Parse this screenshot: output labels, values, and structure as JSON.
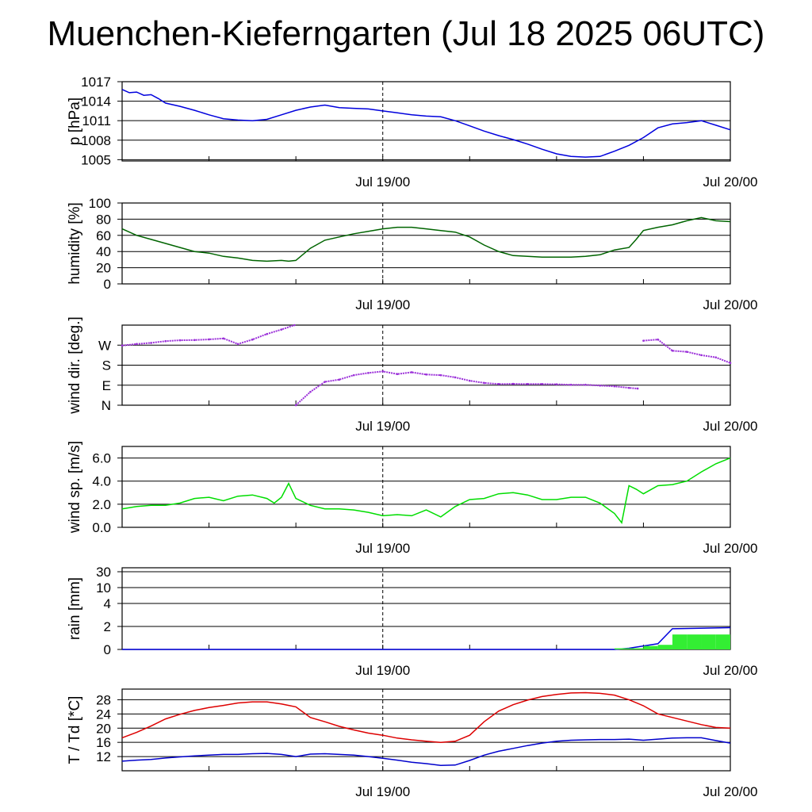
{
  "title": "Muenchen-Kieferngarten (Jul 18 2025 06UTC)",
  "colors": {
    "pressure": "#0000dd",
    "humidity": "#006400",
    "wind_dir": "#9b30d9",
    "wind_speed": "#00dd00",
    "rain_total": "#0000dd",
    "rain_hourly": "#33ee33",
    "temperature": "#dd0000",
    "dewpoint": "#0000cc"
  },
  "chart_data": [
    {
      "type": "line",
      "ylabel": "p [hPa]",
      "yticks": [
        1005,
        1008,
        1011,
        1014,
        1017
      ],
      "ytick_labels": [
        "1005",
        "1008",
        "1011",
        "1014",
        "1017"
      ],
      "ylim": [
        1004.8,
        1017
      ],
      "xticks": [
        18,
        42
      ],
      "xtick_labels": [
        "Jul 19/00",
        "Jul 20/00"
      ],
      "series": [
        {
          "color": "pressure",
          "x": [
            0,
            0.5,
            1,
            1.5,
            2,
            2.5,
            3,
            4,
            5,
            6,
            7,
            8,
            9,
            10,
            11,
            12,
            13,
            14,
            15,
            16,
            17,
            18,
            19,
            20,
            21,
            22,
            23,
            24,
            25,
            26,
            27,
            28,
            29,
            30,
            31,
            32,
            33,
            34,
            35,
            36,
            37,
            38,
            39,
            40,
            41,
            42
          ],
          "y": [
            1015.8,
            1015.3,
            1015.4,
            1014.9,
            1015.0,
            1014.4,
            1013.7,
            1013.2,
            1012.6,
            1011.9,
            1011.3,
            1011.1,
            1011.0,
            1011.2,
            1011.9,
            1012.6,
            1013.1,
            1013.4,
            1013.0,
            1012.9,
            1012.8,
            1012.5,
            1012.2,
            1011.9,
            1011.7,
            1011.6,
            1011.0,
            1010.2,
            1009.4,
            1008.7,
            1008.1,
            1007.4,
            1006.6,
            1005.9,
            1005.5,
            1005.4,
            1005.5,
            1006.3,
            1007.2,
            1008.4,
            1009.9,
            1010.5,
            1010.7,
            1011.0,
            1010.3,
            1009.6
          ]
        }
      ]
    },
    {
      "type": "line",
      "ylabel": "humidity [%]",
      "yticks": [
        0,
        20,
        40,
        60,
        80,
        100
      ],
      "ytick_labels": [
        "0",
        "20",
        "40",
        "60",
        "80",
        "100"
      ],
      "ylim": [
        0,
        100
      ],
      "xticks": [
        18,
        42
      ],
      "xtick_labels": [
        "Jul 19/00",
        "Jul 20/00"
      ],
      "series": [
        {
          "color": "humidity",
          "x": [
            0,
            1,
            2,
            3,
            4,
            5,
            6,
            7,
            8,
            9,
            10,
            11,
            11.5,
            12,
            13,
            14,
            15,
            16,
            17,
            18,
            19,
            20,
            21,
            22,
            23,
            24,
            25,
            26,
            27,
            28,
            29,
            30,
            31,
            32,
            33,
            34,
            35,
            35.5,
            36,
            37,
            38,
            39,
            40,
            41,
            42
          ],
          "y": [
            68,
            60,
            55,
            50,
            45,
            40,
            38,
            34,
            32,
            29,
            28,
            29,
            28,
            29,
            44,
            54,
            58,
            62,
            65,
            68,
            70,
            70,
            68,
            66,
            64,
            58,
            48,
            40,
            35,
            34,
            33,
            33,
            33,
            34,
            36,
            42,
            45,
            55,
            66,
            70,
            73,
            78,
            82,
            78,
            77
          ]
        }
      ]
    },
    {
      "type": "scatter",
      "ylabel": "wind dir. [deg.]",
      "yticks": [
        0,
        90,
        180,
        270
      ],
      "ytick_labels": [
        "N",
        "E",
        "S",
        "W"
      ],
      "ylim": [
        0,
        360
      ],
      "xticks": [
        18,
        42
      ],
      "xtick_labels": [
        "Jul 19/00",
        "Jul 20/00"
      ],
      "series": [
        {
          "color": "wind_dir",
          "x": [
            0,
            1,
            2,
            3,
            4,
            5,
            6,
            7,
            8,
            9,
            10,
            11,
            11.9,
            12,
            13,
            14,
            15,
            16,
            17,
            18,
            19,
            20,
            21,
            22,
            23,
            24,
            25,
            26,
            27,
            28,
            29,
            30,
            31,
            32,
            33,
            34,
            35,
            35.6,
            36,
            37,
            38,
            39,
            40,
            41,
            42
          ],
          "y": [
            268,
            275,
            280,
            288,
            292,
            293,
            296,
            300,
            275,
            295,
            320,
            340,
            360,
            0,
            60,
            105,
            115,
            135,
            145,
            152,
            140,
            148,
            138,
            135,
            125,
            110,
            100,
            95,
            96,
            95,
            95,
            94,
            92,
            92,
            88,
            85,
            78,
            75,
            290,
            295,
            245,
            240,
            225,
            215,
            190
          ]
        }
      ]
    },
    {
      "type": "line",
      "ylabel": "wind sp. [m/s]",
      "yticks": [
        0,
        2,
        4,
        6
      ],
      "ytick_labels": [
        "0.0",
        "2.0",
        "4.0",
        "6.0"
      ],
      "ylim": [
        0,
        7
      ],
      "xticks": [
        18,
        42
      ],
      "xtick_labels": [
        "Jul 19/00",
        "Jul 20/00"
      ],
      "series": [
        {
          "color": "wind_speed",
          "x": [
            0,
            1,
            2,
            3,
            4,
            5,
            6,
            7,
            8,
            9,
            10,
            10.5,
            11,
            11.5,
            12,
            13,
            14,
            15,
            16,
            17,
            18,
            19,
            20,
            21,
            22,
            23,
            24,
            25,
            26,
            27,
            28,
            29,
            30,
            31,
            32,
            33,
            34,
            34.5,
            35,
            35.5,
            36,
            37,
            38,
            39,
            40,
            41,
            42
          ],
          "y": [
            1.6,
            1.8,
            1.9,
            1.9,
            2.1,
            2.5,
            2.6,
            2.3,
            2.7,
            2.8,
            2.5,
            2.1,
            2.6,
            3.8,
            2.5,
            1.9,
            1.6,
            1.6,
            1.5,
            1.3,
            1.0,
            1.1,
            1.0,
            1.5,
            0.9,
            1.8,
            2.4,
            2.5,
            2.9,
            3.0,
            2.8,
            2.4,
            2.4,
            2.6,
            2.6,
            2.1,
            1.2,
            0.4,
            3.6,
            3.3,
            2.9,
            3.6,
            3.7,
            4.0,
            4.8,
            5.5,
            6.0
          ]
        }
      ]
    },
    {
      "type": "area",
      "ylabel": "rain [mm]",
      "yticks": [
        0,
        2,
        4,
        10,
        30
      ],
      "ytick_labels": [
        "0",
        "2",
        "4",
        "10",
        "30"
      ],
      "ylim": [
        0,
        30
      ],
      "xticks": [
        18,
        42
      ],
      "xtick_labels": [
        "Jul 19/00",
        "Jul 20/00"
      ],
      "series": [
        {
          "color": "rain_total",
          "x": [
            0,
            34,
            35,
            36,
            37,
            38,
            42
          ],
          "y": [
            0,
            0,
            0.1,
            0.3,
            0.5,
            1.8,
            1.9
          ]
        },
        {
          "color": "rain_hourly",
          "x": [
            34,
            35,
            36,
            37,
            38,
            39,
            40,
            41,
            42
          ],
          "y": [
            0.1,
            0.1,
            0.3,
            0.4,
            1.3,
            1.3,
            1.3,
            1.3,
            1.3
          ]
        }
      ]
    },
    {
      "type": "line",
      "ylabel": "T / Td [*C]",
      "yticks": [
        12,
        16,
        20,
        24,
        28
      ],
      "ytick_labels": [
        "12",
        "16",
        "20",
        "24",
        "28"
      ],
      "ylim": [
        8,
        31
      ],
      "xticks": [
        18,
        42
      ],
      "xtick_labels": [
        "Jul 19/00",
        "Jul 20/00"
      ],
      "series": [
        {
          "color": "temperature",
          "x": [
            0,
            1,
            2,
            3,
            4,
            5,
            6,
            7,
            8,
            9,
            10,
            11,
            12,
            13,
            14,
            15,
            16,
            17,
            18,
            19,
            20,
            21,
            22,
            23,
            24,
            25,
            26,
            27,
            28,
            29,
            30,
            31,
            32,
            33,
            34,
            35,
            36,
            37,
            38,
            39,
            40,
            41,
            42
          ],
          "y": [
            17.3,
            18.8,
            20.6,
            22.6,
            23.9,
            25.0,
            25.8,
            26.4,
            27.1,
            27.4,
            27.4,
            26.8,
            26.0,
            23.0,
            21.8,
            20.5,
            19.5,
            18.6,
            18.0,
            17.2,
            16.7,
            16.3,
            16.0,
            16.3,
            18.0,
            21.8,
            24.8,
            26.6,
            27.9,
            28.9,
            29.5,
            29.9,
            30.0,
            29.8,
            29.3,
            28.0,
            26.3,
            24.0,
            23.0,
            22.0,
            21.0,
            20.2,
            20.0
          ]
        },
        {
          "color": "dewpoint",
          "x": [
            0,
            1,
            2,
            3,
            4,
            5,
            6,
            7,
            8,
            9,
            10,
            11,
            12,
            13,
            14,
            15,
            16,
            17,
            18,
            19,
            20,
            21,
            22,
            23,
            24,
            25,
            26,
            27,
            28,
            29,
            30,
            31,
            32,
            33,
            34,
            35,
            36,
            37,
            38,
            39,
            40,
            41,
            42
          ],
          "y": [
            10.7,
            11.0,
            11.2,
            11.6,
            11.9,
            12.2,
            12.4,
            12.6,
            12.6,
            12.8,
            12.9,
            12.6,
            12.0,
            12.7,
            12.8,
            12.6,
            12.4,
            12.0,
            11.5,
            11.0,
            10.4,
            10.0,
            9.5,
            9.6,
            10.9,
            12.4,
            13.5,
            14.3,
            15.1,
            15.8,
            16.3,
            16.6,
            16.7,
            16.8,
            16.8,
            16.9,
            16.6,
            16.9,
            17.2,
            17.3,
            17.3,
            16.5,
            15.8
          ]
        }
      ]
    }
  ]
}
